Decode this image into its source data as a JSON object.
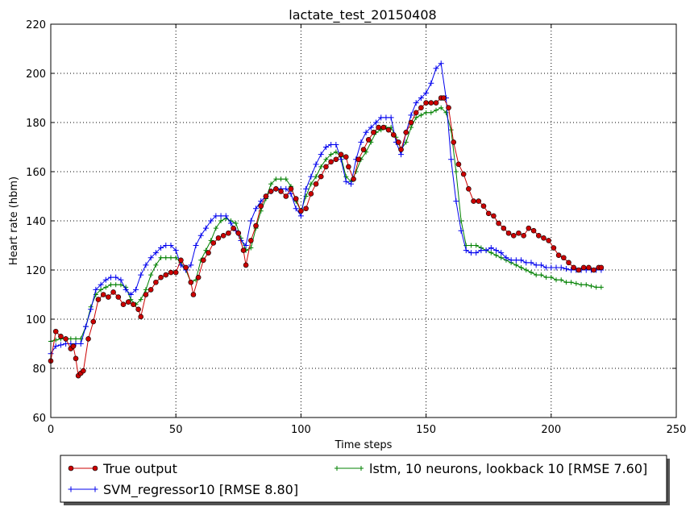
{
  "chart_data": {
    "type": "line",
    "title": "lactate_test_20150408",
    "xlabel": "Time steps",
    "ylabel": "Heart rate (hbm)",
    "xlim": [
      0,
      250
    ],
    "ylim": [
      60,
      220
    ],
    "xticks": [
      0,
      50,
      100,
      150,
      200,
      250
    ],
    "yticks": [
      60,
      80,
      100,
      120,
      140,
      160,
      180,
      200,
      220
    ],
    "grid": true,
    "legend_position": "below-plot",
    "series": [
      {
        "name": "True output",
        "color": "#cc0000",
        "marker": "circle",
        "x": [
          0,
          2,
          4,
          6,
          8,
          9,
          10,
          11,
          12,
          13,
          15,
          17,
          19,
          21,
          23,
          25,
          27,
          29,
          31,
          33,
          35,
          36,
          38,
          40,
          42,
          44,
          46,
          48,
          50,
          52,
          54,
          56,
          57,
          59,
          61,
          63,
          65,
          67,
          69,
          71,
          73,
          75,
          77,
          78,
          80,
          82,
          84,
          86,
          88,
          90,
          92,
          94,
          96,
          98,
          100,
          102,
          104,
          106,
          108,
          110,
          112,
          114,
          116,
          118,
          119,
          121,
          123,
          125,
          127,
          129,
          131,
          133,
          135,
          137,
          139,
          140,
          142,
          144,
          146,
          148,
          150,
          152,
          154,
          156,
          157,
          159,
          161,
          163,
          165,
          167,
          169,
          171,
          173,
          175,
          177,
          179,
          181,
          183,
          185,
          187,
          189,
          191,
          193,
          195,
          197,
          199,
          201,
          203,
          205,
          207,
          209,
          211,
          213,
          215,
          217,
          219,
          220
        ],
        "y": [
          83,
          95,
          93,
          92,
          88,
          89,
          84,
          77,
          78,
          79,
          92,
          99,
          108,
          110,
          109,
          111,
          109,
          106,
          107,
          106,
          104,
          101,
          110,
          112,
          115,
          117,
          118,
          119,
          119,
          124,
          121,
          115,
          110,
          117,
          124,
          127,
          131,
          133,
          134,
          135,
          137,
          135,
          128,
          122,
          132,
          138,
          146,
          150,
          152,
          153,
          152,
          150,
          153,
          149,
          144,
          145,
          151,
          155,
          158,
          162,
          164,
          165,
          167,
          166,
          162,
          157,
          165,
          169,
          173,
          176,
          178,
          178,
          177,
          175,
          172,
          169,
          176,
          180,
          184,
          186,
          188,
          188,
          188,
          190,
          190,
          186,
          172,
          163,
          159,
          153,
          148,
          148,
          146,
          143,
          142,
          139,
          137,
          135,
          134,
          135,
          134,
          137,
          136,
          134,
          133,
          132,
          129,
          126,
          125,
          123,
          121,
          120,
          121,
          121,
          120,
          121,
          121
        ]
      },
      {
        "name": "SVM_regressor10 [RMSE 8.80]",
        "color": "#0000ee",
        "marker": "plus",
        "x": [
          0,
          2,
          4,
          6,
          8,
          10,
          12,
          14,
          16,
          18,
          20,
          22,
          24,
          26,
          28,
          30,
          32,
          34,
          36,
          38,
          40,
          42,
          44,
          46,
          48,
          50,
          52,
          54,
          56,
          58,
          60,
          62,
          64,
          66,
          68,
          70,
          72,
          74,
          76,
          78,
          80,
          82,
          84,
          86,
          88,
          90,
          92,
          94,
          96,
          98,
          100,
          102,
          104,
          106,
          108,
          110,
          112,
          114,
          116,
          118,
          120,
          122,
          124,
          126,
          128,
          130,
          132,
          134,
          136,
          138,
          140,
          142,
          144,
          146,
          148,
          150,
          152,
          154,
          156,
          158,
          160,
          162,
          164,
          166,
          168,
          170,
          172,
          174,
          176,
          178,
          180,
          182,
          184,
          186,
          188,
          190,
          192,
          194,
          196,
          198,
          200,
          202,
          204,
          206,
          208,
          210,
          212,
          214,
          216,
          218,
          220
        ],
        "y": [
          86,
          89,
          89.5,
          90,
          90,
          90,
          90,
          97,
          104,
          112,
          114,
          116,
          117,
          117,
          116,
          112,
          110,
          112,
          118,
          122,
          125,
          127,
          129,
          130,
          130,
          128,
          122,
          120,
          122,
          130,
          134,
          137,
          140,
          142,
          142,
          142,
          139,
          136,
          132,
          130,
          140,
          145,
          148,
          150,
          152,
          153,
          153,
          153,
          151,
          145,
          142,
          153,
          158,
          163,
          167,
          170,
          171,
          171,
          165,
          156,
          155,
          165,
          172,
          176,
          178,
          180,
          182,
          182,
          182,
          172,
          167,
          176,
          183,
          188,
          190,
          192,
          196,
          202,
          204,
          190,
          165,
          148,
          136,
          128,
          127,
          127,
          128,
          128,
          129,
          128,
          127,
          125,
          124,
          124,
          124,
          123,
          123,
          122,
          122,
          121,
          121,
          121,
          121,
          120.5,
          120,
          120,
          120,
          120,
          120,
          120,
          120
        ]
      },
      {
        "name": "lstm, 10 neurons, lookback 10 [RMSE 7.60]",
        "color": "#008000",
        "marker": "tick",
        "x": [
          0,
          2,
          4,
          6,
          8,
          10,
          12,
          14,
          16,
          18,
          20,
          22,
          24,
          26,
          28,
          30,
          32,
          34,
          36,
          38,
          40,
          42,
          44,
          46,
          48,
          50,
          52,
          54,
          56,
          58,
          60,
          62,
          64,
          66,
          68,
          70,
          72,
          74,
          76,
          78,
          80,
          82,
          84,
          86,
          88,
          90,
          92,
          94,
          96,
          98,
          100,
          102,
          104,
          106,
          108,
          110,
          112,
          114,
          116,
          118,
          120,
          122,
          124,
          126,
          128,
          130,
          132,
          134,
          136,
          138,
          140,
          142,
          144,
          146,
          148,
          150,
          152,
          154,
          156,
          158,
          160,
          162,
          164,
          166,
          168,
          170,
          172,
          174,
          176,
          178,
          180,
          182,
          184,
          186,
          188,
          190,
          192,
          194,
          196,
          198,
          200,
          202,
          204,
          206,
          208,
          210,
          212,
          214,
          216,
          218,
          220
        ],
        "y": [
          91,
          91.5,
          92,
          92,
          92,
          92,
          92,
          97,
          105,
          110,
          112,
          113,
          114,
          114,
          114,
          113,
          108,
          106,
          108,
          112,
          118,
          122,
          125,
          125,
          125,
          125,
          123,
          120,
          115,
          116,
          124,
          128,
          132,
          137,
          140,
          141,
          140,
          139,
          133,
          128,
          129,
          137,
          144,
          149,
          155,
          157,
          157,
          157,
          154,
          148,
          144,
          150,
          155,
          158,
          162,
          165,
          167,
          168,
          166,
          158,
          156,
          160,
          165,
          168,
          172,
          176,
          177,
          178,
          178,
          174,
          169,
          172,
          178,
          182,
          183,
          184,
          184,
          185,
          186,
          184,
          177,
          160,
          140,
          130,
          130,
          130,
          129,
          128,
          127,
          126,
          125,
          124,
          123,
          122,
          121,
          120,
          119,
          118,
          118,
          117,
          117,
          116,
          116,
          115,
          115,
          114.5,
          114,
          114,
          113.5,
          113,
          113
        ]
      }
    ]
  }
}
